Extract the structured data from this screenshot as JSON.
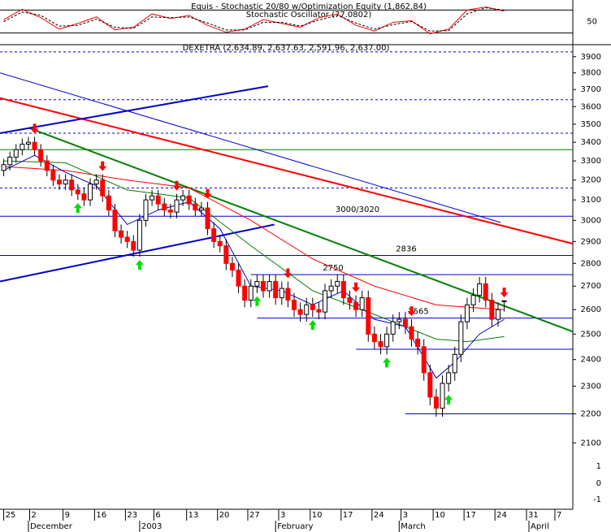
{
  "chart_data": {
    "type": "candlestick",
    "oscillator": {
      "title": "Equis - Stochastic 20/80  w/Optimization Equity (1,862.84)",
      "subtitle": "Stochastic Oscillator (77.0802)",
      "ylim": [
        0,
        100
      ],
      "yticks": [
        50
      ],
      "levels": [
        80,
        20
      ],
      "x": [
        0,
        3,
        6,
        9,
        12,
        15,
        18,
        21,
        24,
        27,
        30,
        33,
        36,
        39,
        42,
        45,
        48,
        51,
        54,
        57,
        60,
        63,
        66,
        69,
        72,
        75,
        78,
        81
      ],
      "series": [
        {
          "name": "Stochastic",
          "color": "#ff0000",
          "values": [
            55,
            82,
            60,
            30,
            45,
            62,
            28,
            35,
            70,
            58,
            66,
            40,
            22,
            30,
            55,
            45,
            35,
            60,
            70,
            40,
            25,
            48,
            52,
            18,
            30,
            80,
            88,
            77.0802
          ]
        },
        {
          "name": "Signal",
          "color": "#000000",
          "dashed": true,
          "values": [
            50,
            75,
            66,
            38,
            40,
            56,
            35,
            32,
            62,
            60,
            62,
            46,
            28,
            28,
            48,
            48,
            38,
            54,
            66,
            46,
            30,
            42,
            50,
            25,
            26,
            70,
            86,
            80
          ]
        }
      ]
    },
    "title": "DEXETRA (2,634.89, 2,637.63, 2,591.96, 2,637.00)",
    "log_scale": true,
    "ylim": [
      1888,
      3950
    ],
    "yticks": [
      2100,
      2200,
      2300,
      2400,
      2500,
      2600,
      2700,
      2800,
      2900,
      3000,
      3100,
      3200,
      3300,
      3400,
      3500,
      3600,
      3700,
      3800,
      3900
    ],
    "lower_axis_labels": [
      "1",
      "0",
      "-1"
    ],
    "xlim": [
      -0.6,
      92.1
    ],
    "xticks": [
      {
        "value": 0,
        "label": "25"
      },
      {
        "value": 4.2,
        "label": "2"
      },
      {
        "value": 9.6,
        "label": "9"
      },
      {
        "value": 14.7,
        "label": "16"
      },
      {
        "value": 19.7,
        "label": "23"
      },
      {
        "value": 24.3,
        "label": "6"
      },
      {
        "value": 29.6,
        "label": "13"
      },
      {
        "value": 34.6,
        "label": "20"
      },
      {
        "value": 39.5,
        "label": "27"
      },
      {
        "value": 44.5,
        "label": "3"
      },
      {
        "value": 49.6,
        "label": "10"
      },
      {
        "value": 54.6,
        "label": "17"
      },
      {
        "value": 59.6,
        "label": "24"
      },
      {
        "value": 64.3,
        "label": "3"
      },
      {
        "value": 69.5,
        "label": "10"
      },
      {
        "value": 74.5,
        "label": "17"
      },
      {
        "value": 79.5,
        "label": "24"
      },
      {
        "value": 84.6,
        "label": "31"
      },
      {
        "value": 89.2,
        "label": "7"
      }
    ],
    "month_ticks": [
      {
        "value": 4,
        "label": "December"
      },
      {
        "value": 22,
        "label": "2003"
      },
      {
        "value": 44,
        "label": "February"
      },
      {
        "value": 64,
        "label": "March"
      },
      {
        "value": 85,
        "label": "April"
      }
    ],
    "up_color": "#ffffff",
    "down_color": "#ff0000",
    "open": [
      3250,
      3280,
      3320,
      3360,
      3390,
      3400,
      3360,
      3300,
      3250,
      3200,
      3180,
      3200,
      3150,
      3130,
      3100,
      3180,
      3200,
      3120,
      3050,
      2950,
      2920,
      2900,
      2860,
      3000,
      3100,
      3120,
      3080,
      3050,
      3040,
      3100,
      3120,
      3080,
      3050,
      3060,
      2960,
      2900,
      2880,
      2800,
      2770,
      2700,
      2640,
      2700,
      2720,
      2680,
      2720,
      2650,
      2690,
      2640,
      2600,
      2580,
      2620,
      2600,
      2590,
      2680,
      2700,
      2720,
      2650,
      2630,
      2600,
      2650,
      2500,
      2470,
      2450,
      2500,
      2550,
      2560,
      2530,
      2480,
      2450,
      2350,
      2260,
      2220,
      2310,
      2350,
      2420,
      2550,
      2620,
      2660,
      2710,
      2640,
      2560,
      2634.89
    ],
    "high": [
      3310,
      3350,
      3390,
      3420,
      3430,
      3430,
      3390,
      3330,
      3280,
      3230,
      3230,
      3230,
      3180,
      3160,
      3210,
      3230,
      3230,
      3150,
      3080,
      2980,
      2950,
      2930,
      3030,
      3130,
      3150,
      3150,
      3110,
      3080,
      3130,
      3150,
      3150,
      3110,
      3090,
      3090,
      2990,
      2930,
      2910,
      2830,
      2800,
      2730,
      2730,
      2750,
      2750,
      2750,
      2750,
      2720,
      2720,
      2670,
      2630,
      2650,
      2650,
      2630,
      2710,
      2730,
      2750,
      2750,
      2680,
      2660,
      2680,
      2680,
      2530,
      2500,
      2530,
      2580,
      2590,
      2590,
      2560,
      2510,
      2480,
      2380,
      2290,
      2340,
      2380,
      2450,
      2580,
      2650,
      2690,
      2740,
      2740,
      2670,
      2630,
      2637.63
    ],
    "low": [
      3220,
      3250,
      3290,
      3330,
      3360,
      3330,
      3270,
      3220,
      3170,
      3150,
      3150,
      3120,
      3100,
      3070,
      3070,
      3150,
      3090,
      3020,
      2920,
      2890,
      2870,
      2830,
      2830,
      2970,
      3070,
      3050,
      3020,
      3010,
      3010,
      3070,
      3050,
      3020,
      3020,
      2930,
      2870,
      2850,
      2770,
      2740,
      2670,
      2610,
      2610,
      2670,
      2650,
      2650,
      2620,
      2620,
      2610,
      2570,
      2550,
      2550,
      2570,
      2560,
      2560,
      2650,
      2670,
      2620,
      2600,
      2570,
      2570,
      2470,
      2440,
      2420,
      2420,
      2470,
      2520,
      2500,
      2450,
      2420,
      2320,
      2230,
      2190,
      2190,
      2280,
      2320,
      2390,
      2520,
      2590,
      2630,
      2610,
      2530,
      2530,
      2591.96
    ],
    "close": [
      3280,
      3320,
      3360,
      3390,
      3400,
      3360,
      3300,
      3250,
      3200,
      3180,
      3200,
      3150,
      3130,
      3100,
      3180,
      3200,
      3120,
      3050,
      2950,
      2920,
      2900,
      2860,
      3000,
      3100,
      3120,
      3080,
      3050,
      3040,
      3100,
      3120,
      3080,
      3050,
      3060,
      2960,
      2900,
      2880,
      2800,
      2770,
      2700,
      2640,
      2700,
      2720,
      2680,
      2720,
      2650,
      2690,
      2640,
      2600,
      2580,
      2620,
      2600,
      2590,
      2680,
      2700,
      2720,
      2650,
      2630,
      2600,
      2650,
      2500,
      2470,
      2450,
      2500,
      2550,
      2560,
      2530,
      2480,
      2450,
      2350,
      2260,
      2220,
      2310,
      2350,
      2420,
      2550,
      2620,
      2660,
      2710,
      2640,
      2560,
      2600,
      2637
    ],
    "buy_signals": [
      12,
      22,
      41,
      50,
      62,
      72
    ],
    "sell_signals": [
      5,
      16,
      28,
      33,
      46,
      57,
      66,
      81
    ],
    "moving_averages": [
      {
        "color": "#ff0000",
        "x": [
          0,
          10,
          20,
          30,
          40,
          50,
          60,
          70,
          75,
          81
        ],
        "values": [
          3270,
          3250,
          3200,
          3160,
          3000,
          2820,
          2700,
          2620,
          2610,
          2600
        ]
      },
      {
        "color": "#008000",
        "x": [
          0,
          10,
          20,
          30,
          40,
          50,
          60,
          70,
          75,
          81
        ],
        "values": [
          3300,
          3290,
          3150,
          3110,
          2880,
          2680,
          2580,
          2480,
          2470,
          2490
        ]
      },
      {
        "color": "#0000cc",
        "x": [
          0,
          5,
          10,
          15,
          20,
          25,
          30,
          35,
          40,
          45,
          50,
          55,
          60,
          65,
          70,
          73,
          77,
          81
        ],
        "values": [
          3250,
          3330,
          3240,
          3170,
          2980,
          3050,
          3090,
          2960,
          2700,
          2680,
          2620,
          2680,
          2560,
          2530,
          2330,
          2390,
          2500,
          2560
        ]
      }
    ],
    "levels": [
      {
        "value": 3930,
        "color": "#0000cc",
        "dashed": true
      },
      {
        "value": 3640,
        "color": "#0000cc",
        "dashed": true
      },
      {
        "value": 3450,
        "color": "#0000cc",
        "dashed": true
      },
      {
        "value": 3360,
        "color": "#008000"
      },
      {
        "value": 3160,
        "color": "#0000cc",
        "dashed": true
      },
      {
        "value": 3020,
        "color": "#0000cc",
        "label": "3000/3020"
      },
      {
        "value": 2836,
        "color": "#0000cc",
        "label": "2836"
      },
      {
        "value": 2750,
        "color": "#0000cc",
        "label": "2750",
        "from": 40
      },
      {
        "value": 2565,
        "color": "#0000cc",
        "label": "2565",
        "from": 41
      },
      {
        "value": 2440,
        "color": "#0000cc",
        "from": 57
      },
      {
        "value": 2200,
        "color": "#0000cc",
        "from": 65
      }
    ],
    "trendlines": [
      {
        "color": "#0000cc",
        "width": 1,
        "x": [
          -0.6,
          80.4
        ],
        "values": [
          3800,
          2990
        ]
      },
      {
        "color": "#ff0000",
        "width": 2,
        "x": [
          -0.6,
          92.1
        ],
        "values": [
          3650,
          2890
        ]
      },
      {
        "color": "#008000",
        "width": 2,
        "x": [
          4,
          92.1
        ],
        "values": [
          3480,
          2510
        ]
      },
      {
        "color": "#0000cc",
        "width": 2,
        "x": [
          -0.6,
          42.8
        ],
        "values": [
          3450,
          3720
        ]
      },
      {
        "color": "#0000cc",
        "width": 2,
        "x": [
          -0.6,
          43.8
        ],
        "values": [
          2720,
          2980
        ]
      }
    ]
  }
}
